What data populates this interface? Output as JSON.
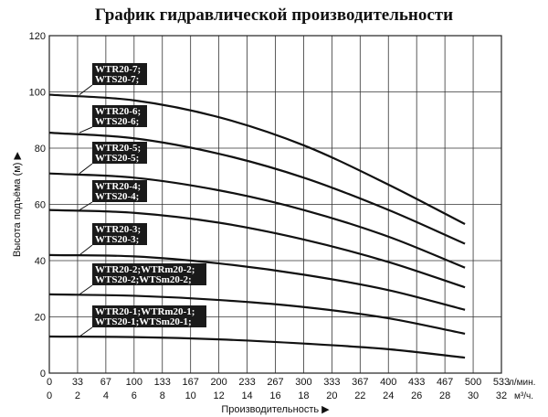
{
  "chart_data": {
    "type": "line",
    "title": "График гидравлической производительности",
    "ylabel": "Высота подъёма (м) ▶",
    "xlabel": "Производительность ▶",
    "x_unit_top": "л/мин.",
    "x_unit_bottom": "м³/ч.",
    "ylim": [
      0,
      120
    ],
    "yticks": [
      "0",
      "20",
      "40",
      "60",
      "80",
      "100",
      "120"
    ],
    "xlim": [
      0,
      533
    ],
    "xticks_top": [
      "0",
      "33",
      "67",
      "100",
      "133",
      "167",
      "200",
      "233",
      "267",
      "300",
      "333",
      "367",
      "400",
      "433",
      "467",
      "500",
      "533"
    ],
    "xticks_bottom": [
      "0",
      "2",
      "4",
      "6",
      "8",
      "10",
      "12",
      "14",
      "16",
      "18",
      "20",
      "22",
      "24",
      "26",
      "28",
      "30",
      "32"
    ],
    "grid": true,
    "x": [
      0,
      100,
      200,
      300,
      400,
      490
    ],
    "series": [
      {
        "label_lines": [
          "WTR20-7;",
          "WTS20-7;"
        ],
        "values": [
          99,
          97,
          91,
          81,
          67,
          53
        ]
      },
      {
        "label_lines": [
          "WTR20-6;",
          "WTS20-6;"
        ],
        "values": [
          85.5,
          83.5,
          78,
          69.5,
          58,
          46
        ]
      },
      {
        "label_lines": [
          "WTR20-5;",
          "WTS20-5;"
        ],
        "values": [
          71,
          69.5,
          65,
          58,
          48.5,
          37.5
        ]
      },
      {
        "label_lines": [
          "WTR20-4;",
          "WTS20-4;"
        ],
        "values": [
          58,
          57,
          53.5,
          47.5,
          39.5,
          30.5
        ]
      },
      {
        "label_lines": [
          "WTR20-3;",
          "WTS20-3;"
        ],
        "values": [
          42,
          41.5,
          39,
          35,
          29.5,
          22.5
        ]
      },
      {
        "label_lines": [
          "WTR20-2;WTRm20-2;",
          "WTS20-2;WTSm20-2;"
        ],
        "values": [
          28,
          27.5,
          26,
          23.5,
          19.5,
          14
        ]
      },
      {
        "label_lines": [
          "WTR20-1;WTRm20-1;",
          "WTS20-1;WTSm20-1;"
        ],
        "values": [
          13,
          12.8,
          12,
          10.5,
          8.5,
          5.5
        ]
      }
    ]
  }
}
